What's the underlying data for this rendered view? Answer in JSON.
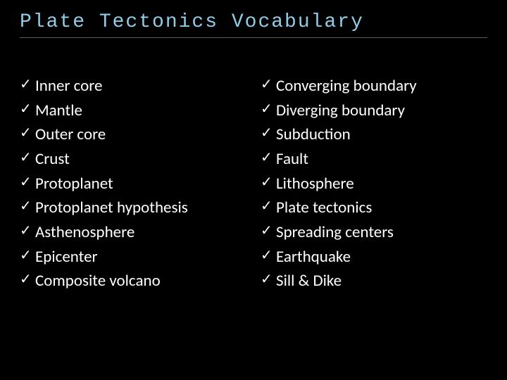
{
  "background_color": "#000000",
  "title": {
    "text": "Plate Tectonics Vocabulary",
    "color": "#8fcde6",
    "fontsize": 28,
    "font_family": "Consolas",
    "underline_color": "#5a5a5a"
  },
  "bullet_symbol": "✓",
  "list_text_color": "#ffffff",
  "list_fontsize": 23,
  "left_column": [
    "Inner core",
    "Mantle",
    "Outer core",
    "Crust",
    "Protoplanet",
    "Protoplanet hypothesis",
    "Asthenosphere",
    "Epicenter",
    "Composite volcano"
  ],
  "right_column": [
    "Converging boundary",
    "Diverging boundary",
    "Subduction",
    "Fault",
    "Lithosphere",
    "Plate tectonics",
    "Spreading centers",
    "Earthquake",
    "Sill & Dike"
  ]
}
